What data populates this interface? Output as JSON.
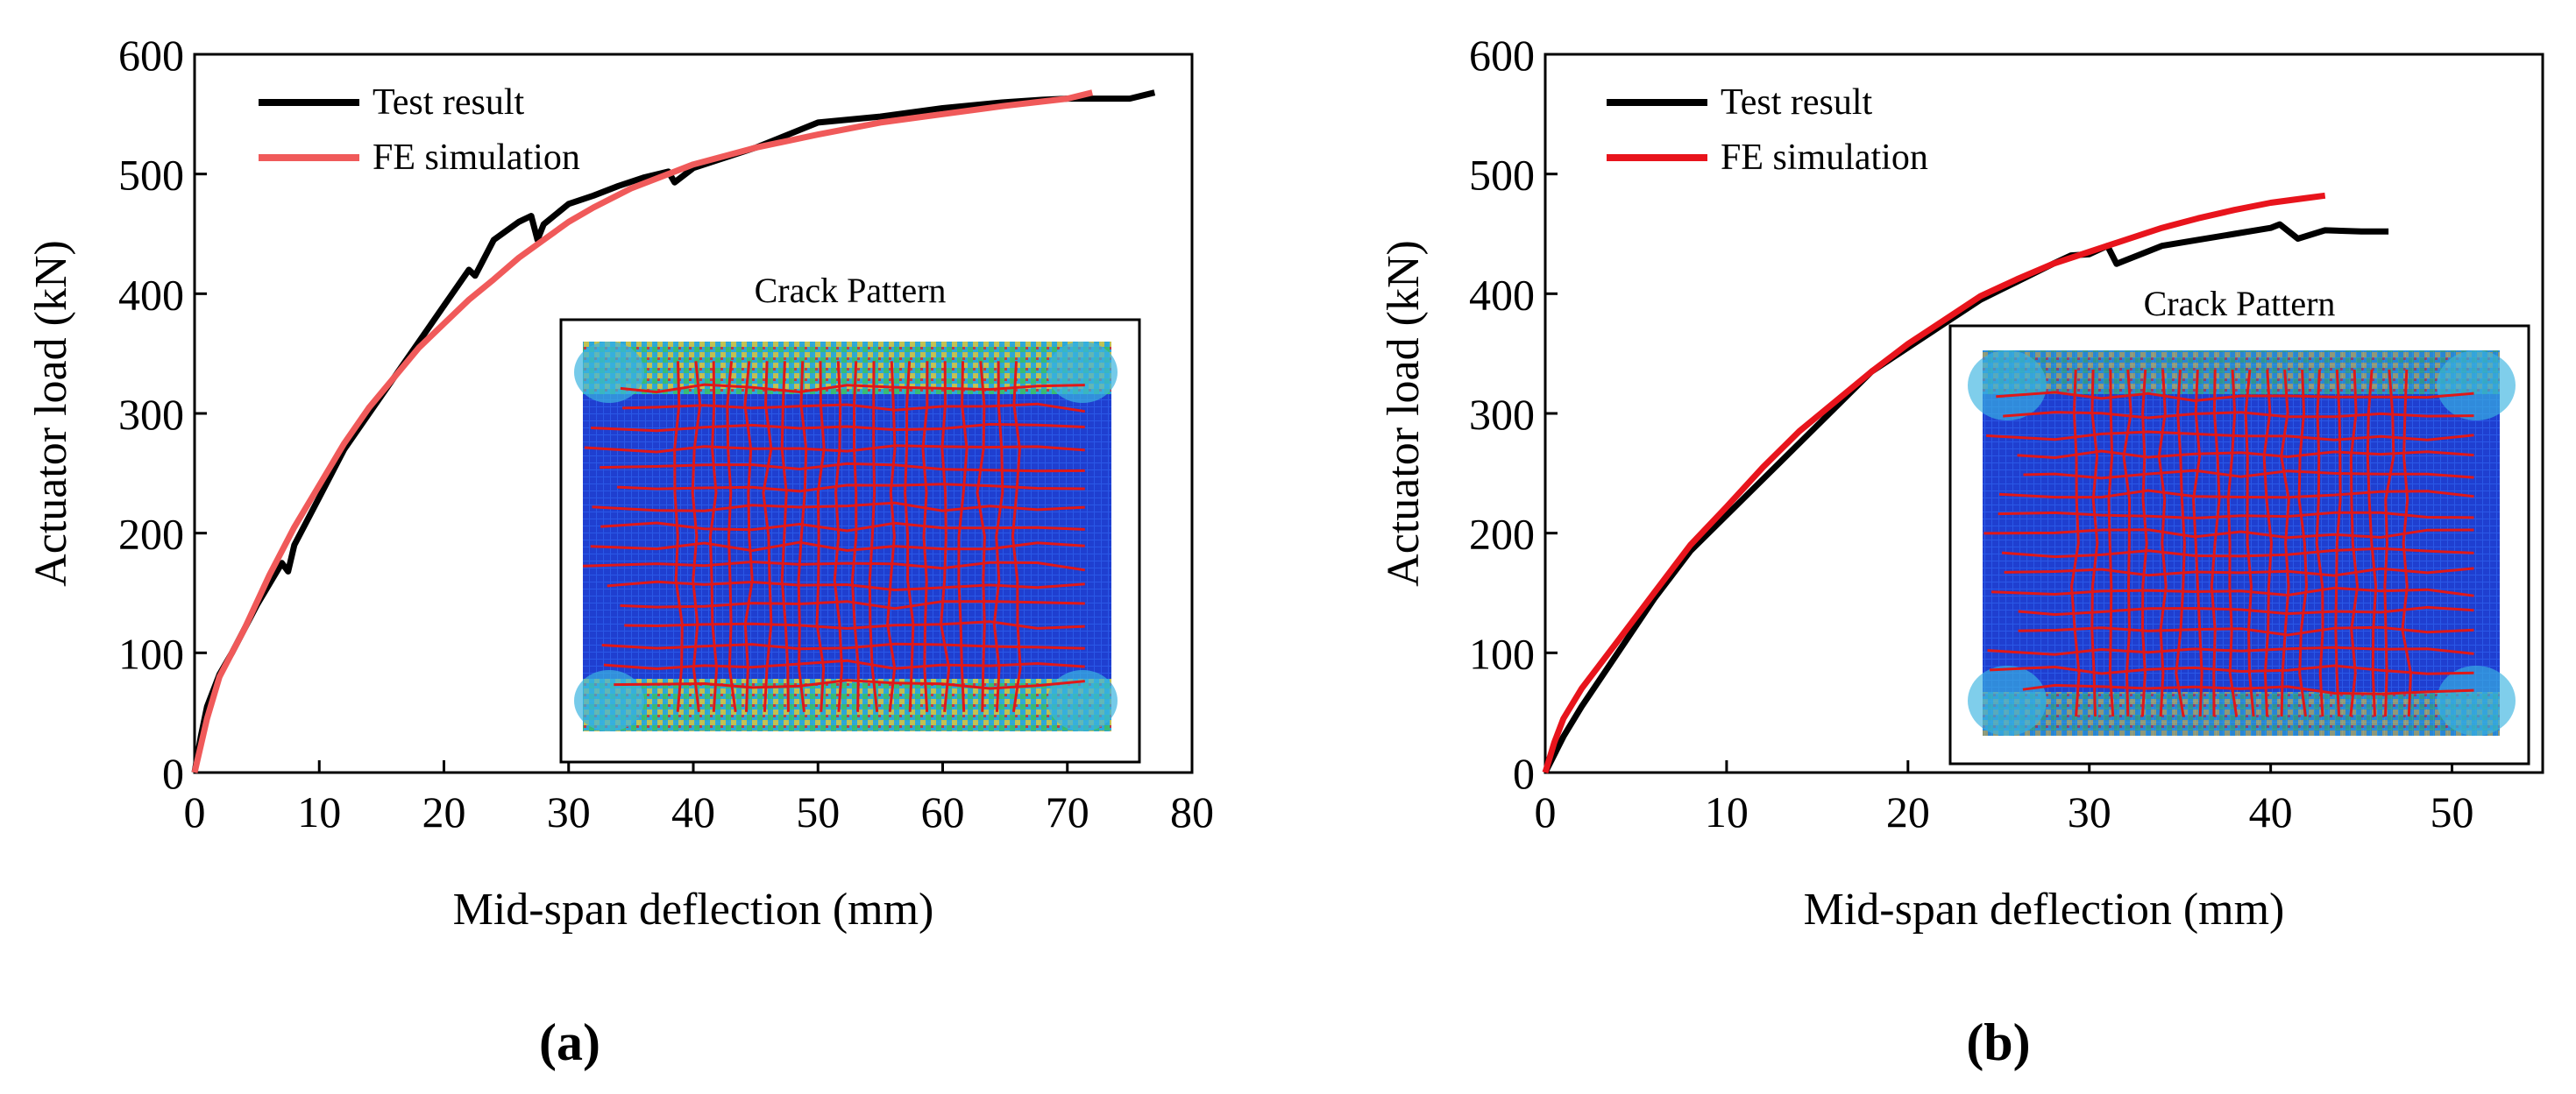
{
  "chart_data": [
    {
      "type": "line",
      "panel_label": "(a)",
      "xlabel": "Mid-span deflection (mm)",
      "ylabel": "Actuator load (kN)",
      "xlim": [
        0,
        80
      ],
      "ylim": [
        0,
        600
      ],
      "xticks": [
        0,
        10,
        20,
        30,
        40,
        50,
        60,
        70,
        80
      ],
      "yticks": [
        0,
        100,
        200,
        300,
        400,
        500,
        600
      ],
      "legend": [
        "Test result",
        "FE simulation"
      ],
      "inset_title": "Crack Pattern",
      "series": [
        {
          "name": "Test result",
          "color": "#000000",
          "x": [
            0,
            0.5,
            1,
            2,
            3,
            5,
            7,
            7.5,
            8,
            10,
            12,
            14,
            16,
            18,
            20,
            22,
            22.5,
            24,
            26,
            27,
            27.5,
            28,
            30,
            32,
            34,
            36,
            38,
            38.5,
            40,
            45,
            50,
            55,
            60,
            65,
            68,
            70,
            72,
            75,
            77
          ],
          "y": [
            0,
            30,
            55,
            82,
            100,
            140,
            175,
            168,
            190,
            230,
            270,
            300,
            330,
            360,
            390,
            420,
            415,
            445,
            460,
            465,
            445,
            458,
            475,
            482,
            490,
            497,
            502,
            493,
            505,
            522,
            543,
            548,
            555,
            560,
            562,
            563,
            563,
            563,
            568
          ]
        },
        {
          "name": "FE simulation",
          "color": "#f05a5a",
          "x": [
            0,
            1,
            2,
            4,
            6,
            8,
            10,
            12,
            14,
            16,
            18,
            20,
            22,
            24,
            26,
            28,
            30,
            32,
            35,
            38,
            40,
            45,
            50,
            55,
            60,
            65,
            70,
            72
          ],
          "y": [
            0,
            45,
            80,
            120,
            165,
            205,
            240,
            275,
            305,
            330,
            355,
            375,
            395,
            412,
            430,
            445,
            460,
            472,
            488,
            500,
            508,
            522,
            533,
            543,
            550,
            557,
            563,
            568
          ]
        }
      ]
    },
    {
      "type": "line",
      "panel_label": "(b)",
      "xlabel": "Mid-span deflection (mm)",
      "ylabel": "Actuator load (kN)",
      "xlim": [
        0,
        55
      ],
      "ylim": [
        0,
        600
      ],
      "xticks": [
        0,
        10,
        20,
        30,
        40,
        50
      ],
      "yticks": [
        0,
        100,
        200,
        300,
        400,
        500,
        600
      ],
      "legend": [
        "Test result",
        "FE simulation"
      ],
      "inset_title": "Crack Pattern",
      "series": [
        {
          "name": "Test result",
          "color": "#000000",
          "x": [
            0,
            1,
            2,
            4,
            6,
            8,
            10,
            12,
            14,
            16,
            18,
            20,
            22,
            24,
            26,
            28,
            29,
            30,
            31,
            31.5,
            32,
            34,
            36,
            38,
            40,
            40.5,
            41.5,
            43,
            45,
            46.5
          ],
          "y": [
            0,
            30,
            55,
            100,
            145,
            185,
            215,
            245,
            275,
            305,
            335,
            355,
            375,
            395,
            410,
            425,
            432,
            433,
            440,
            425,
            428,
            440,
            445,
            450,
            455,
            458,
            446,
            453,
            452,
            452
          ]
        },
        {
          "name": "FE simulation",
          "color": "#e8141c",
          "x": [
            0,
            0.5,
            1,
            2,
            4,
            6,
            8,
            10,
            12,
            14,
            16,
            18,
            20,
            22,
            24,
            26,
            28,
            30,
            32,
            34,
            36,
            38,
            40,
            42,
            43
          ],
          "y": [
            0,
            25,
            45,
            70,
            110,
            150,
            190,
            222,
            255,
            285,
            310,
            335,
            358,
            378,
            398,
            412,
            425,
            435,
            445,
            455,
            463,
            470,
            476,
            480,
            482
          ]
        }
      ]
    }
  ]
}
